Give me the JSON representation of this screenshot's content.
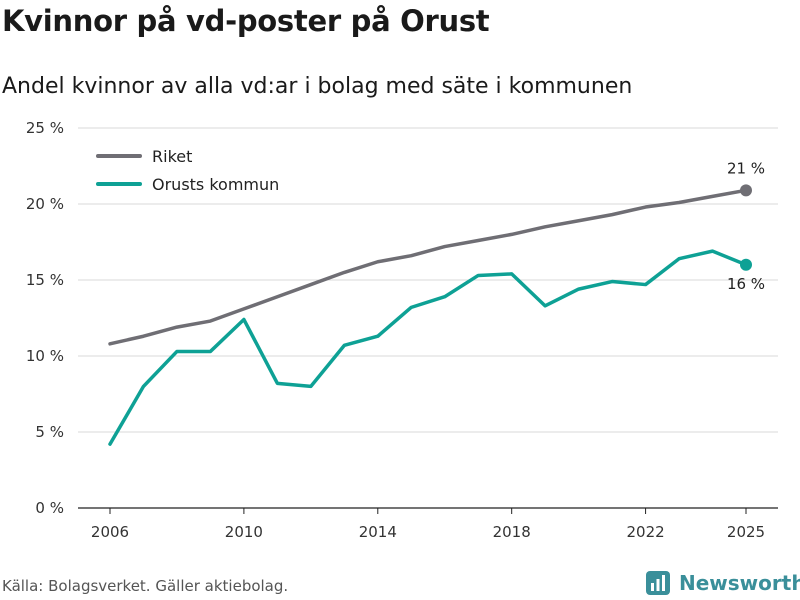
{
  "title": "Kvinnor på vd-poster på Orust",
  "subtitle": "Andel kvinnor av alla vd:ar i bolag med säte i kommunen",
  "source": "Källa: Bolagsverket. Gäller aktiebolag.",
  "brand": "Newsworthy",
  "chart_data": {
    "type": "line",
    "title": "Kvinnor på vd-poster på Orust",
    "subtitle": "Andel kvinnor av alla vd:ar i bolag med säte i kommunen",
    "xlabel": "",
    "ylabel": "",
    "xlim": [
      2006,
      2025
    ],
    "ylim": [
      0,
      25
    ],
    "x": [
      2006,
      2007,
      2008,
      2009,
      2010,
      2011,
      2012,
      2013,
      2014,
      2015,
      2016,
      2017,
      2018,
      2019,
      2020,
      2021,
      2022,
      2023,
      2024,
      2025
    ],
    "x_ticks": [
      2006,
      2010,
      2014,
      2018,
      2022,
      2025
    ],
    "y_ticks": [
      0,
      5,
      10,
      15,
      20,
      25
    ],
    "y_tick_labels": [
      "0 %",
      "5 %",
      "10 %",
      "15 %",
      "20 %",
      "25 %"
    ],
    "grid": true,
    "legend_position": "top-left",
    "series": [
      {
        "name": "Riket",
        "color": "#6f6e74",
        "values": [
          10.8,
          11.3,
          11.9,
          12.3,
          13.1,
          13.9,
          14.7,
          15.5,
          16.2,
          16.6,
          17.2,
          17.6,
          18.0,
          18.5,
          18.9,
          19.3,
          19.8,
          20.1,
          20.5,
          20.9
        ],
        "end_label": "21 %"
      },
      {
        "name": "Orusts kommun",
        "color": "#0ea195",
        "values": [
          4.2,
          8.0,
          10.3,
          10.3,
          12.4,
          8.2,
          8.0,
          10.7,
          11.3,
          13.2,
          13.9,
          15.3,
          15.4,
          13.3,
          14.4,
          14.9,
          14.7,
          16.4,
          16.9,
          16.0
        ],
        "end_label": "16 %"
      }
    ]
  }
}
